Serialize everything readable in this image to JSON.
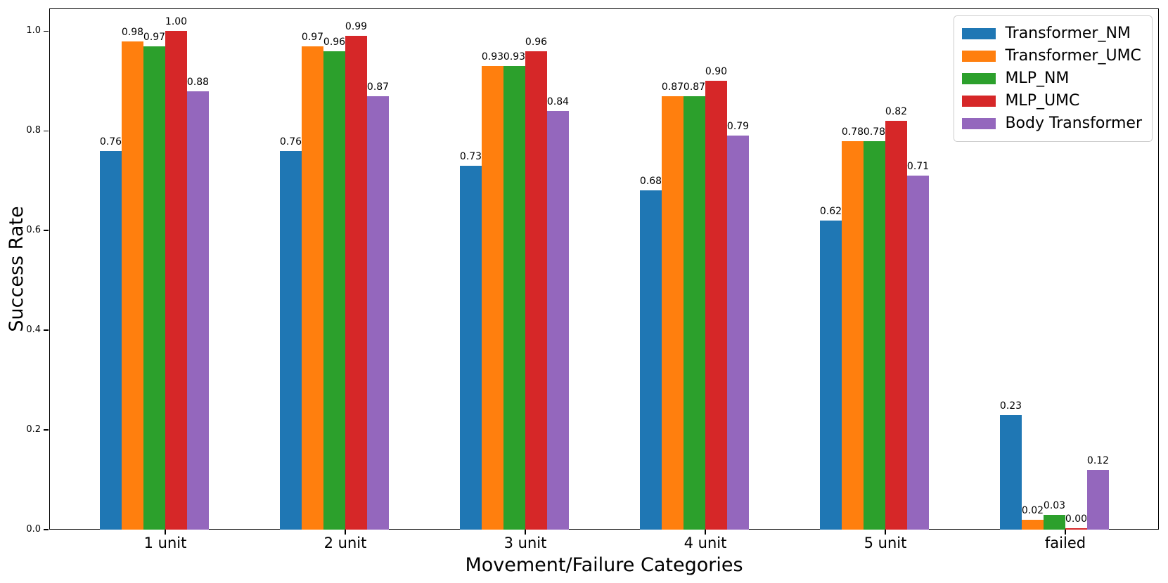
{
  "chart_data": {
    "type": "bar",
    "xlabel": "Movement/Failure Categories",
    "ylabel": "Success Rate",
    "categories": [
      "1 unit",
      "2 unit",
      "3 unit",
      "4 unit",
      "5 unit",
      "failed"
    ],
    "series": [
      {
        "name": "Transformer_NM",
        "color": "#1f77b4",
        "values": [
          0.76,
          0.76,
          0.73,
          0.68,
          0.62,
          0.23
        ]
      },
      {
        "name": "Transformer_UMC",
        "color": "#ff7f0e",
        "values": [
          0.98,
          0.97,
          0.93,
          0.87,
          0.78,
          0.02
        ]
      },
      {
        "name": "MLP_NM",
        "color": "#2ca02c",
        "values": [
          0.97,
          0.96,
          0.93,
          0.87,
          0.78,
          0.03
        ]
      },
      {
        "name": "MLP_UMC",
        "color": "#d62728",
        "values": [
          1.0,
          0.99,
          0.96,
          0.9,
          0.82,
          0.0
        ]
      },
      {
        "name": "Body Transformer",
        "color": "#9467bd",
        "values": [
          0.88,
          0.87,
          0.84,
          0.79,
          0.71,
          0.12
        ]
      }
    ],
    "yticks": [
      "0.0",
      "0.2",
      "0.4",
      "0.6",
      "0.8",
      "1.0"
    ],
    "ylim": [
      0.0,
      1.046
    ],
    "grid": false,
    "legend_position": "upper right",
    "bar_labels": "values shown above each bar, 2 decimal places",
    "axis_color": "#000000",
    "legend_border_color": "#cccccc"
  }
}
